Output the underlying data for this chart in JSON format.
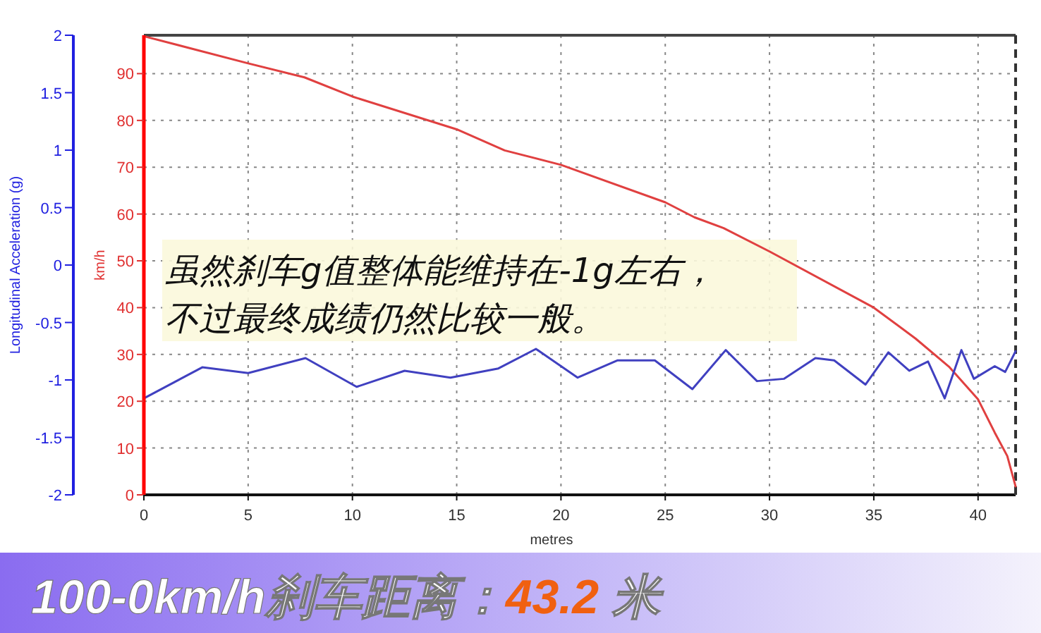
{
  "chart_data": {
    "type": "line",
    "title": "100-0km/h刹车距离：43.2 米",
    "xlabel": "metres",
    "ylabel": "km/h",
    "y2label": "Longitudinal Acceleration (g)",
    "annotations": [
      "虽然刹车g值整体能维持在-1g左右，",
      "不过最终成绩仍然比较一般。"
    ],
    "xlim": [
      0,
      41.8
    ],
    "xticks": [
      0,
      5,
      10,
      15,
      20,
      25,
      30,
      35,
      40
    ],
    "ylim": [
      0,
      98.2
    ],
    "yticks": [
      0,
      10,
      20,
      30,
      40,
      50,
      60,
      70,
      80,
      90
    ],
    "y2lim": [
      -2,
      2
    ],
    "y2ticks": [
      -2,
      -1.5,
      -1,
      -0.5,
      0,
      0.5,
      1,
      1.5,
      2
    ],
    "grid": true,
    "line_style": "solid",
    "ref_lines": [
      {
        "axis": "x",
        "value": 41.8,
        "label": null,
        "color": "#333333",
        "line_style": "dashed"
      }
    ],
    "series": [
      {
        "color": "#e04040",
        "x": [
          0,
          5,
          7.7,
          10,
          15,
          17.3,
          20,
          25,
          26.4,
          27.8,
          30,
          35,
          37,
          38.6,
          40,
          40.8,
          41.4,
          41.8
        ],
        "values": [
          98,
          92.2,
          89.2,
          85.1,
          78.1,
          73.6,
          70.5,
          62.5,
          59.3,
          57,
          52,
          40,
          33.4,
          27.4,
          20.4,
          13.3,
          8.3,
          1.8
        ]
      },
      {
        "color": "#4040c0",
        "axis": "y2",
        "x": [
          0,
          2.8,
          5,
          7.75,
          10.2,
          12.5,
          14.7,
          17,
          18.8,
          20.8,
          22.7,
          24.5,
          26.3,
          27.9,
          29.4,
          30.7,
          32.2,
          33.1,
          34.6,
          35.7,
          36.7,
          37.6,
          38.4,
          39.2,
          39.8,
          40.8,
          41.3,
          41.8
        ],
        "values": [
          -1.16,
          -0.89,
          -0.94,
          -0.81,
          -1.06,
          -0.92,
          -0.98,
          -0.9,
          -0.73,
          -0.98,
          -0.83,
          -0.83,
          -1.08,
          -0.74,
          -1.01,
          -0.99,
          -0.81,
          -0.83,
          -1.04,
          -0.76,
          -0.92,
          -0.84,
          -1.16,
          -0.74,
          -0.99,
          -0.88,
          -0.93,
          -0.75
        ]
      }
    ]
  }
}
